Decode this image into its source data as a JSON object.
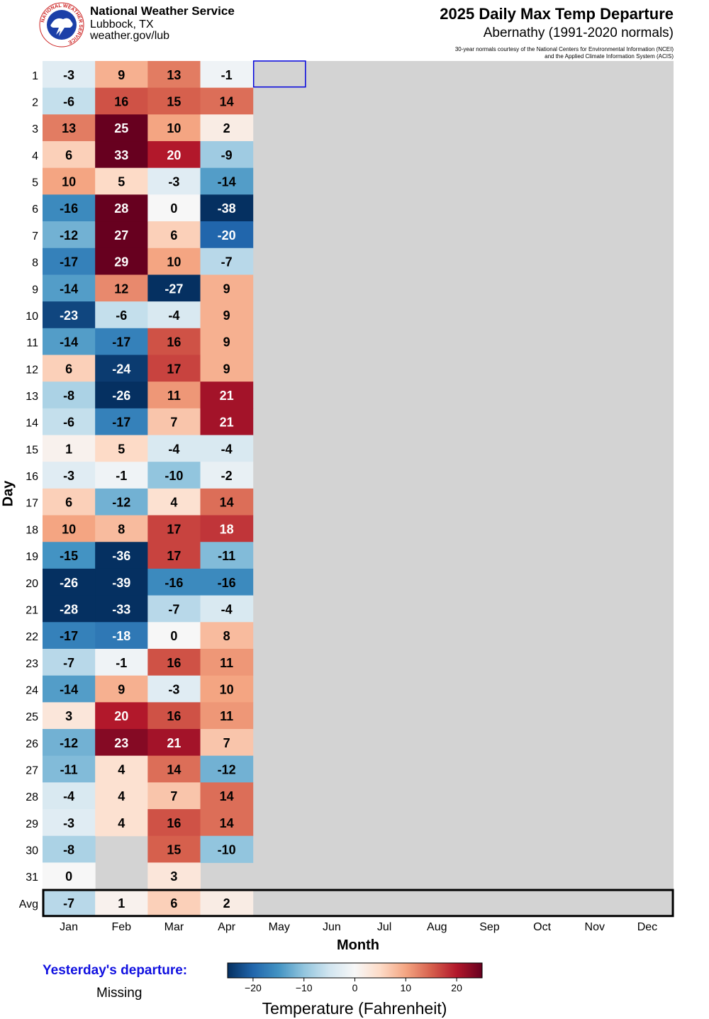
{
  "header": {
    "org": "National Weather Service",
    "location": "Lubbock, TX",
    "url": "weather.gov/lub",
    "logo_text": "NATIONAL WEATHER SERVICE"
  },
  "yesterday": {
    "label": "Yesterday's departure:",
    "value": "Missing"
  },
  "chart_data": {
    "type": "heatmap",
    "title": "2025 Daily Max Temp Departure",
    "subtitle": "Abernathy (1991-2020 normals)",
    "credit": [
      "30-year normals courtesy of the National Centers for Environmental Information (NCEI)",
      "and the Applied Climate Information System (ACIS)"
    ],
    "xlabel": "Month",
    "ylabel": "Day",
    "colorbar_label": "Temperature (Fahrenheit)",
    "colorbar_range": [
      -25,
      25
    ],
    "colorbar_ticks": [
      "−20",
      "−10",
      "0",
      "10",
      "20"
    ],
    "colorbar_tick_values": [
      -20,
      -10,
      0,
      10,
      20
    ],
    "months": [
      "Jan",
      "Feb",
      "Mar",
      "Apr",
      "May",
      "Jun",
      "Jul",
      "Aug",
      "Sep",
      "Oct",
      "Nov",
      "Dec"
    ],
    "days": [
      "1",
      "2",
      "3",
      "4",
      "5",
      "6",
      "7",
      "8",
      "9",
      "10",
      "11",
      "12",
      "13",
      "14",
      "15",
      "16",
      "17",
      "18",
      "19",
      "20",
      "21",
      "22",
      "23",
      "24",
      "25",
      "26",
      "27",
      "28",
      "29",
      "30",
      "31"
    ],
    "avg_label": "Avg",
    "highlight": {
      "month": "May",
      "day": 1
    },
    "series": [
      {
        "month": "Jan",
        "values": [
          -3,
          -6,
          13,
          6,
          10,
          -16,
          -12,
          -17,
          -14,
          -23,
          -14,
          6,
          -8,
          -6,
          1,
          -3,
          6,
          10,
          -15,
          -26,
          -28,
          -17,
          -7,
          -14,
          3,
          -12,
          -11,
          -4,
          -3,
          -8,
          0
        ],
        "avg": -7
      },
      {
        "month": "Feb",
        "values": [
          9,
          16,
          25,
          33,
          5,
          28,
          27,
          29,
          12,
          -6,
          -17,
          -24,
          -26,
          -17,
          5,
          -1,
          -12,
          8,
          -36,
          -39,
          -33,
          -18,
          -1,
          9,
          20,
          23,
          4,
          4,
          4
        ],
        "avg": 1
      },
      {
        "month": "Mar",
        "values": [
          13,
          15,
          10,
          20,
          -3,
          0,
          6,
          10,
          -27,
          -4,
          16,
          17,
          11,
          7,
          -4,
          -10,
          4,
          17,
          17,
          -16,
          -7,
          0,
          16,
          -3,
          16,
          21,
          14,
          7,
          16,
          15,
          3
        ],
        "avg": 6
      },
      {
        "month": "Apr",
        "values": [
          -1,
          14,
          2,
          -9,
          -14,
          -38,
          -20,
          -7,
          9,
          9,
          9,
          9,
          21,
          21,
          -4,
          -2,
          14,
          18,
          -11,
          -16,
          -4,
          8,
          11,
          10,
          11,
          7,
          -12,
          14,
          14,
          -10
        ],
        "avg": 2
      },
      {
        "month": "May",
        "values": [],
        "avg": null
      },
      {
        "month": "Jun",
        "values": [],
        "avg": null
      },
      {
        "month": "Jul",
        "values": [],
        "avg": null
      },
      {
        "month": "Aug",
        "values": [],
        "avg": null
      },
      {
        "month": "Sep",
        "values": [],
        "avg": null
      },
      {
        "month": "Oct",
        "values": [],
        "avg": null
      },
      {
        "month": "Nov",
        "values": [],
        "avg": null
      },
      {
        "month": "Dec",
        "values": [],
        "avg": null
      }
    ]
  }
}
